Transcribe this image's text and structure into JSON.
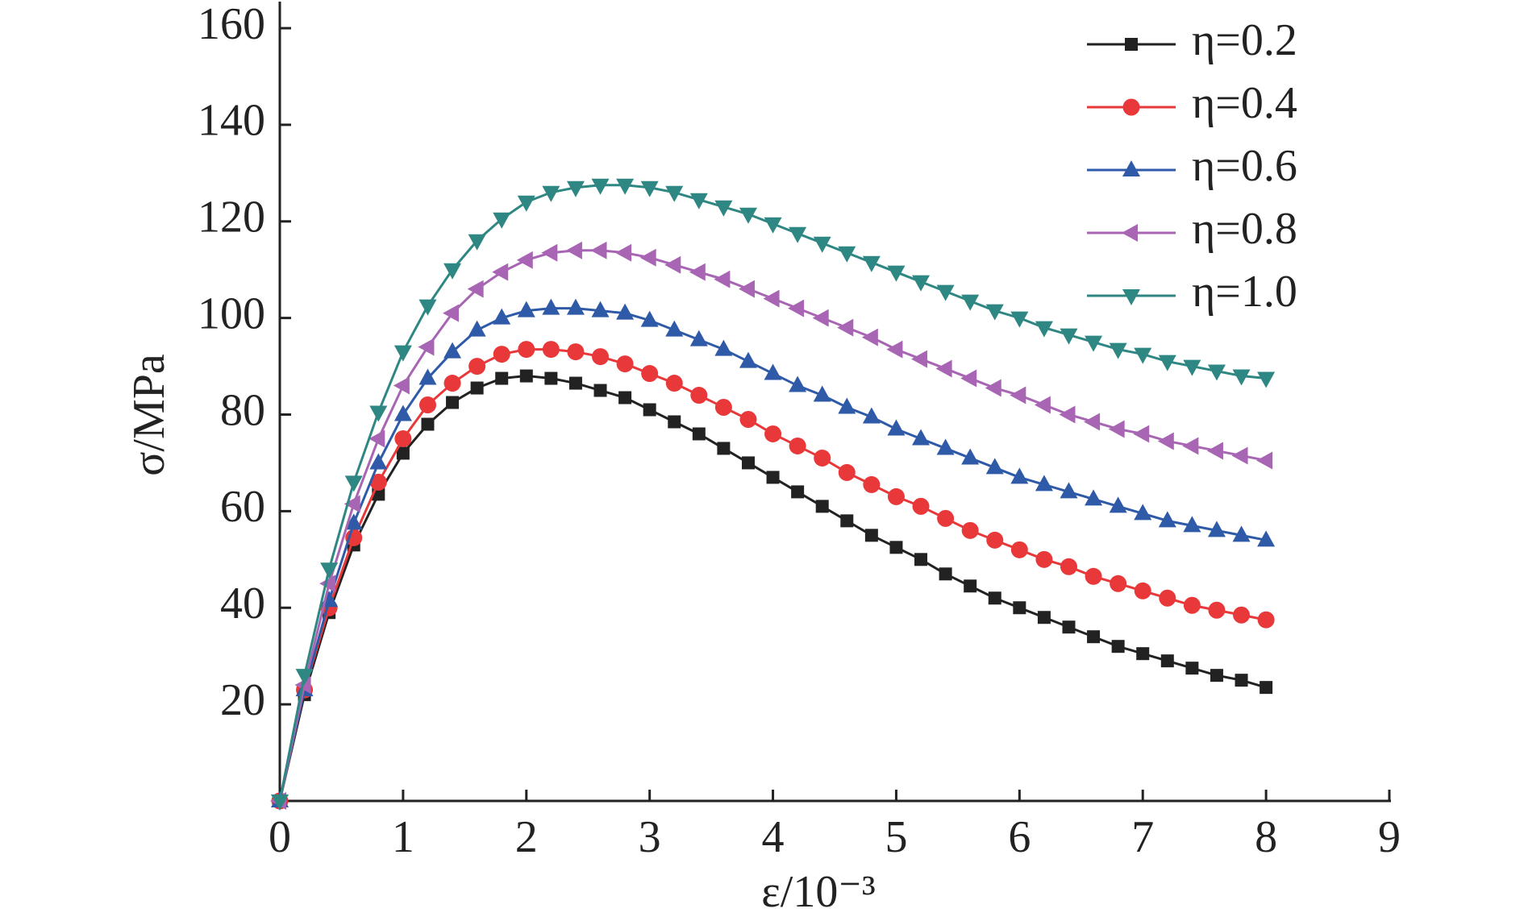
{
  "chart_data": {
    "type": "line",
    "x_label": "ε/10⁻³",
    "y_label": "σ/MPa",
    "xlim": [
      0,
      9
    ],
    "ylim": [
      0,
      160
    ],
    "xticks": [
      0,
      1,
      2,
      3,
      4,
      5,
      6,
      7,
      8,
      9
    ],
    "yticks": [
      20,
      40,
      60,
      80,
      100,
      120,
      140,
      160
    ],
    "legend": "upper right",
    "x": [
      0,
      0.2,
      0.4,
      0.6,
      0.8,
      1.0,
      1.2,
      1.4,
      1.6,
      1.8,
      2.0,
      2.2,
      2.4,
      2.6,
      2.8,
      3.0,
      3.2,
      3.4,
      3.6,
      3.8,
      4.0,
      4.2,
      4.4,
      4.6,
      4.8,
      5.0,
      5.2,
      5.4,
      5.6,
      5.8,
      6.0,
      6.2,
      6.4,
      6.6,
      6.8,
      7.0,
      7.2,
      7.4,
      7.6,
      7.8,
      8.0
    ],
    "series": [
      {
        "name": "η=0.2",
        "color": "#222222",
        "marker": "square",
        "values": [
          0,
          22,
          39,
          53,
          63.5,
          72,
          78,
          82.5,
          85.5,
          87.5,
          88,
          87.5,
          86.5,
          85,
          83.5,
          81,
          78.5,
          76,
          73,
          70,
          67,
          64,
          61,
          58,
          55,
          52.5,
          50,
          47,
          44.5,
          42,
          40,
          38,
          36,
          34,
          32,
          30.5,
          29,
          27.5,
          26,
          25,
          23.5
        ]
      },
      {
        "name": "η=0.4",
        "color": "#e8383a",
        "marker": "circle",
        "values": [
          0,
          23,
          40,
          54.5,
          66,
          75,
          82,
          86.5,
          90,
          92.5,
          93.5,
          93.5,
          93,
          92,
          90.5,
          88.5,
          86.5,
          84,
          81.5,
          79,
          76,
          73.5,
          71,
          68,
          65.5,
          63,
          61,
          58.5,
          56,
          54,
          52,
          50,
          48.5,
          46.5,
          45,
          43.5,
          42,
          40.5,
          39.5,
          38.5,
          37.5
        ]
      },
      {
        "name": "η=0.6",
        "color": "#2f5aa8",
        "marker": "triangle-up",
        "values": [
          0,
          23,
          41.5,
          57.5,
          70,
          80,
          87.5,
          93,
          97.5,
          100,
          101.5,
          102,
          102,
          101.5,
          101,
          99.5,
          97.5,
          95.5,
          93.5,
          91,
          88.5,
          86,
          84,
          81.5,
          79.5,
          77,
          75,
          73,
          71,
          69,
          67,
          65.5,
          64,
          62.5,
          61,
          59.5,
          58,
          57,
          56,
          55,
          54
        ]
      },
      {
        "name": "η=0.8",
        "color": "#a865b3",
        "marker": "triangle-left",
        "values": [
          0,
          24,
          45,
          61.5,
          75,
          86,
          94,
          101,
          106,
          109.5,
          112,
          113.5,
          114,
          114,
          113.5,
          112.5,
          111,
          109.5,
          108,
          106,
          104,
          102,
          100,
          98,
          96,
          93.5,
          91.5,
          89.5,
          87.5,
          85.5,
          84,
          82,
          80,
          78.5,
          77,
          76,
          74.5,
          73.5,
          72.5,
          71.5,
          70.5
        ]
      },
      {
        "name": "η=1.0",
        "color": "#2e8782",
        "marker": "triangle-down",
        "values": [
          0,
          26,
          48,
          66,
          80.5,
          93,
          102.5,
          110,
          116,
          120.5,
          124,
          126,
          127,
          127.5,
          127.5,
          127,
          126,
          124.5,
          123,
          121.5,
          119.5,
          117.5,
          115.5,
          113.5,
          111.5,
          109.5,
          107.5,
          105.5,
          103.5,
          101.5,
          100,
          98,
          96.5,
          95,
          93.5,
          92.5,
          91,
          90,
          89,
          88,
          87.5
        ]
      }
    ]
  }
}
